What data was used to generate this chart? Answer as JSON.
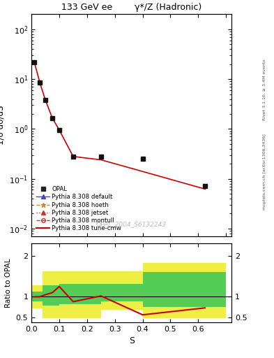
{
  "title_left": "133 GeV ee",
  "title_right": "γ*/Z (Hadronic)",
  "ylabel_main": "1/σ dσ/dS",
  "ylabel_ratio": "Ratio to OPAL",
  "xlabel": "S",
  "right_label_top": "Rivet 3.1.10, ≥ 3.4M events",
  "right_label_bottom": "mcplots.cern.ch [arXiv:1306.3436]",
  "watermark": "OPAL_2004_S6132243",
  "opal_x": [
    0.01,
    0.03,
    0.05,
    0.075,
    0.1,
    0.15,
    0.25,
    0.4,
    0.625
  ],
  "opal_y": [
    22.0,
    8.5,
    3.8,
    1.65,
    0.95,
    0.28,
    0.28,
    0.25,
    0.072
  ],
  "tune_x": [
    0.01,
    0.03,
    0.05,
    0.075,
    0.1,
    0.15,
    0.25,
    0.4,
    0.625
  ],
  "tune_y": [
    22.0,
    8.5,
    3.8,
    1.65,
    0.95,
    0.28,
    0.24,
    0.14,
    0.062
  ],
  "ratio_x": [
    0.01,
    0.03,
    0.05,
    0.075,
    0.1,
    0.15,
    0.25,
    0.4,
    0.625
  ],
  "ratio_y": [
    1.0,
    1.0,
    1.05,
    1.1,
    1.25,
    0.88,
    1.02,
    0.56,
    0.73
  ],
  "band_x_edges": [
    0.0,
    0.04,
    0.1,
    0.25,
    0.4,
    0.7
  ],
  "band_green_lo": [
    0.88,
    0.78,
    0.82,
    0.88,
    0.75,
    0.88
  ],
  "band_green_hi": [
    1.12,
    1.28,
    1.32,
    1.32,
    1.6,
    1.6
  ],
  "band_yellow_lo": [
    0.72,
    0.48,
    0.48,
    0.68,
    0.48,
    0.68
  ],
  "band_yellow_hi": [
    1.28,
    1.62,
    1.62,
    1.62,
    1.82,
    1.82
  ],
  "color_tune": "#cc0000",
  "color_opal": "#111111",
  "color_green": "#55cc55",
  "color_yellow": "#eeee44",
  "ylim_main": [
    0.007,
    200
  ],
  "ylim_ratio": [
    0.38,
    2.3
  ],
  "xlim": [
    0.0,
    0.72
  ],
  "legend_entries": [
    {
      "label": "OPAL",
      "marker": "s",
      "mfc": "#222222",
      "color": "none",
      "ls": "none"
    },
    {
      "label": "Pythia 8.308 default",
      "marker": "^",
      "mfc": "#4444bb",
      "color": "#4444bb",
      "ls": "-"
    },
    {
      "label": "Pythia 8.308 hoeth",
      "marker": "*",
      "mfc": "#cc8833",
      "color": "#cc8833",
      "ls": "--"
    },
    {
      "label": "Pythia 8.308 jetset",
      "marker": "^",
      "mfc": "#cc3333",
      "color": "#cc3333",
      "ls": ":"
    },
    {
      "label": "Pythia 8.308 montull",
      "marker": "o",
      "mfc": "none",
      "color": "#cc3333",
      "ls": "--"
    },
    {
      "label": "Pythia 8.308 tune-cmw",
      "marker": "none",
      "mfc": "none",
      "color": "#cc0000",
      "ls": "-"
    }
  ]
}
